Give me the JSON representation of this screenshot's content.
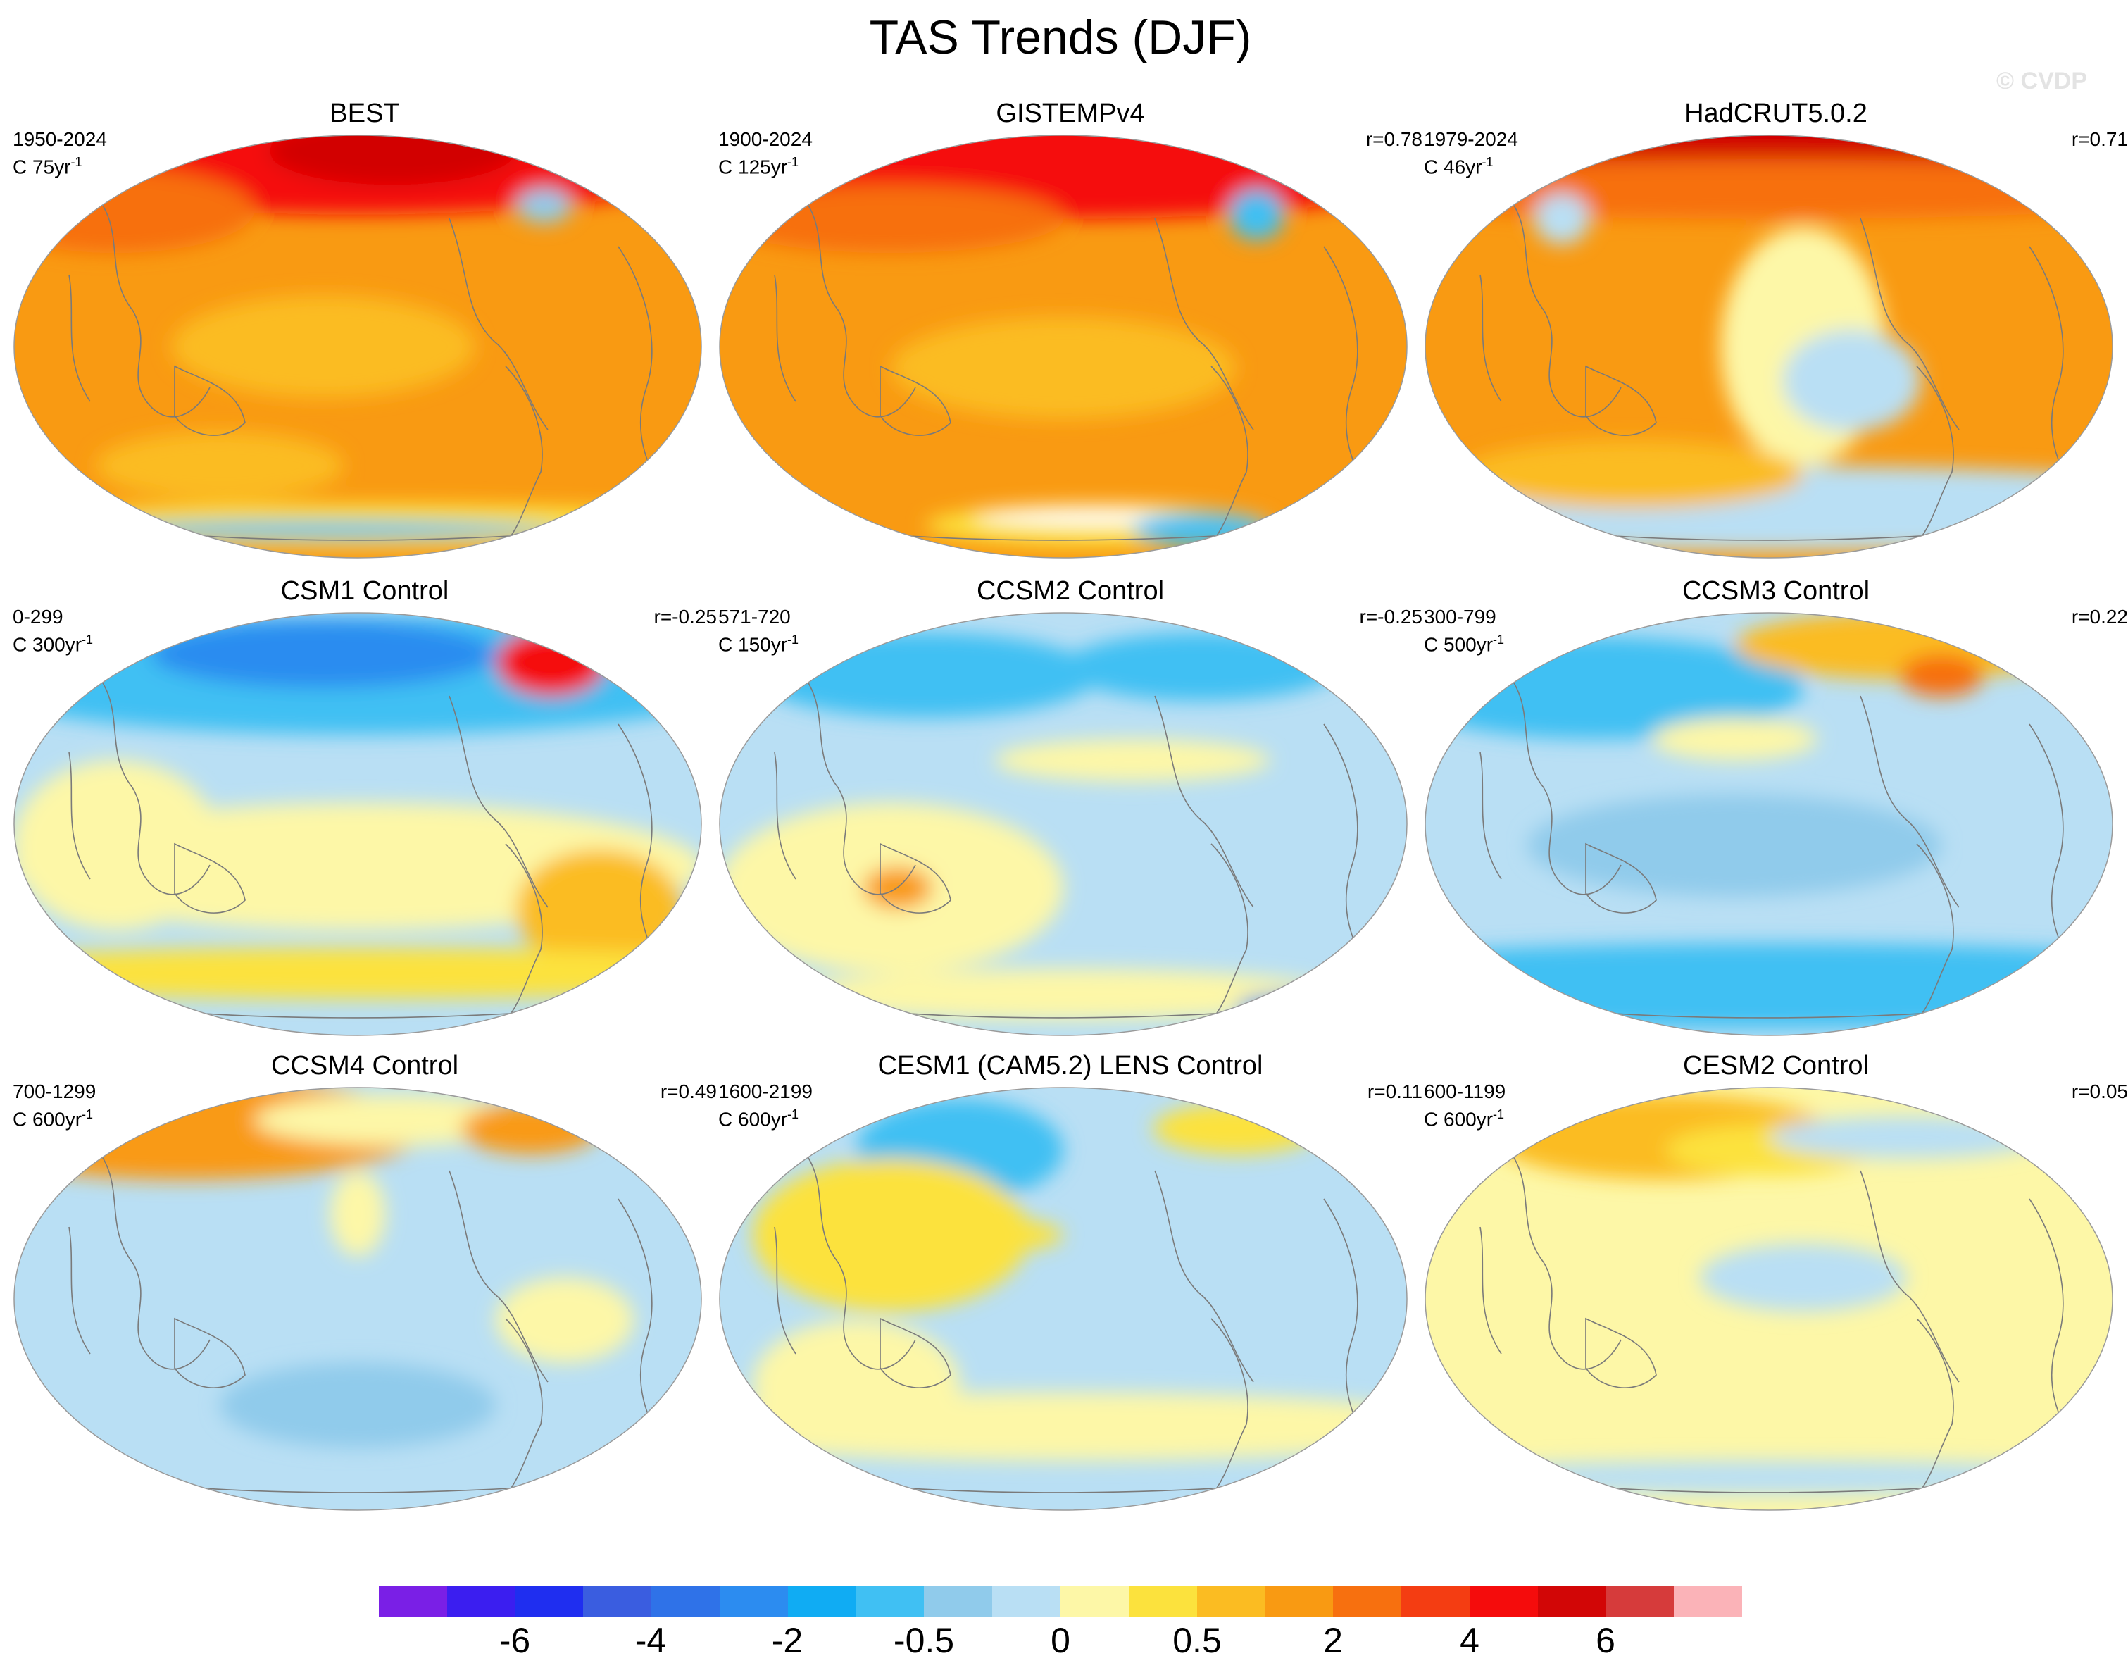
{
  "title": "TAS Trends (DJF)",
  "watermark": "© CVDP",
  "panels": [
    {
      "name": "BEST",
      "years": "1950-2024",
      "scale": "C 75yr",
      "corr": "",
      "field": "obs_best"
    },
    {
      "name": "GISTEMPv4",
      "years": "1900-2024",
      "scale": "C 125yr",
      "corr": "r=0.78",
      "field": "obs_giss"
    },
    {
      "name": "HadCRUT5.0.2",
      "years": "1979-2024",
      "scale": "C 46yr",
      "corr": "r=0.71",
      "field": "obs_had"
    },
    {
      "name": "CSM1 Control",
      "years": "0-299",
      "scale": "C 300yr",
      "corr": "r=-0.25",
      "field": "ctl_csm1"
    },
    {
      "name": "CCSM2 Control",
      "years": "571-720",
      "scale": "C 150yr",
      "corr": "r=-0.25",
      "field": "ctl_ccsm2"
    },
    {
      "name": "CCSM3 Control",
      "years": "300-799",
      "scale": "C 500yr",
      "corr": "r=0.22",
      "field": "ctl_ccsm3"
    },
    {
      "name": "CCSM4 Control",
      "years": "700-1299",
      "scale": "C 600yr",
      "corr": "r=0.49",
      "field": "ctl_ccsm4"
    },
    {
      "name": "CESM1 (CAM5.2) LENS Control",
      "years": "1600-2199",
      "scale": "C 600yr",
      "corr": "r=0.11",
      "field": "ctl_cesm1"
    },
    {
      "name": "CESM2 Control",
      "years": "600-1199",
      "scale": "C 600yr",
      "corr": "r=0.05",
      "field": "ctl_cesm2"
    }
  ],
  "scale_exponent": "-1",
  "colorbar": {
    "colors": [
      "#7a1fe6",
      "#3b1ef0",
      "#1f2ef0",
      "#3a5de0",
      "#2f72e8",
      "#2c8cf0",
      "#10acf3",
      "#40c0f3",
      "#90cbeb",
      "#b9dff4",
      "#fdf7a7",
      "#fce23d",
      "#fbbc22",
      "#f99a12",
      "#f7700f",
      "#f43d12",
      "#f50c0c",
      "#d20606",
      "#d63b3b",
      "#fbb3b8"
    ],
    "labels": [
      "-6",
      "-4",
      "-2",
      "-0.5",
      "0",
      "0.5",
      "2",
      "4",
      "6"
    ]
  },
  "colors": {
    "coast": "#7a7a7a",
    "map_border": "#9a9a9a"
  }
}
